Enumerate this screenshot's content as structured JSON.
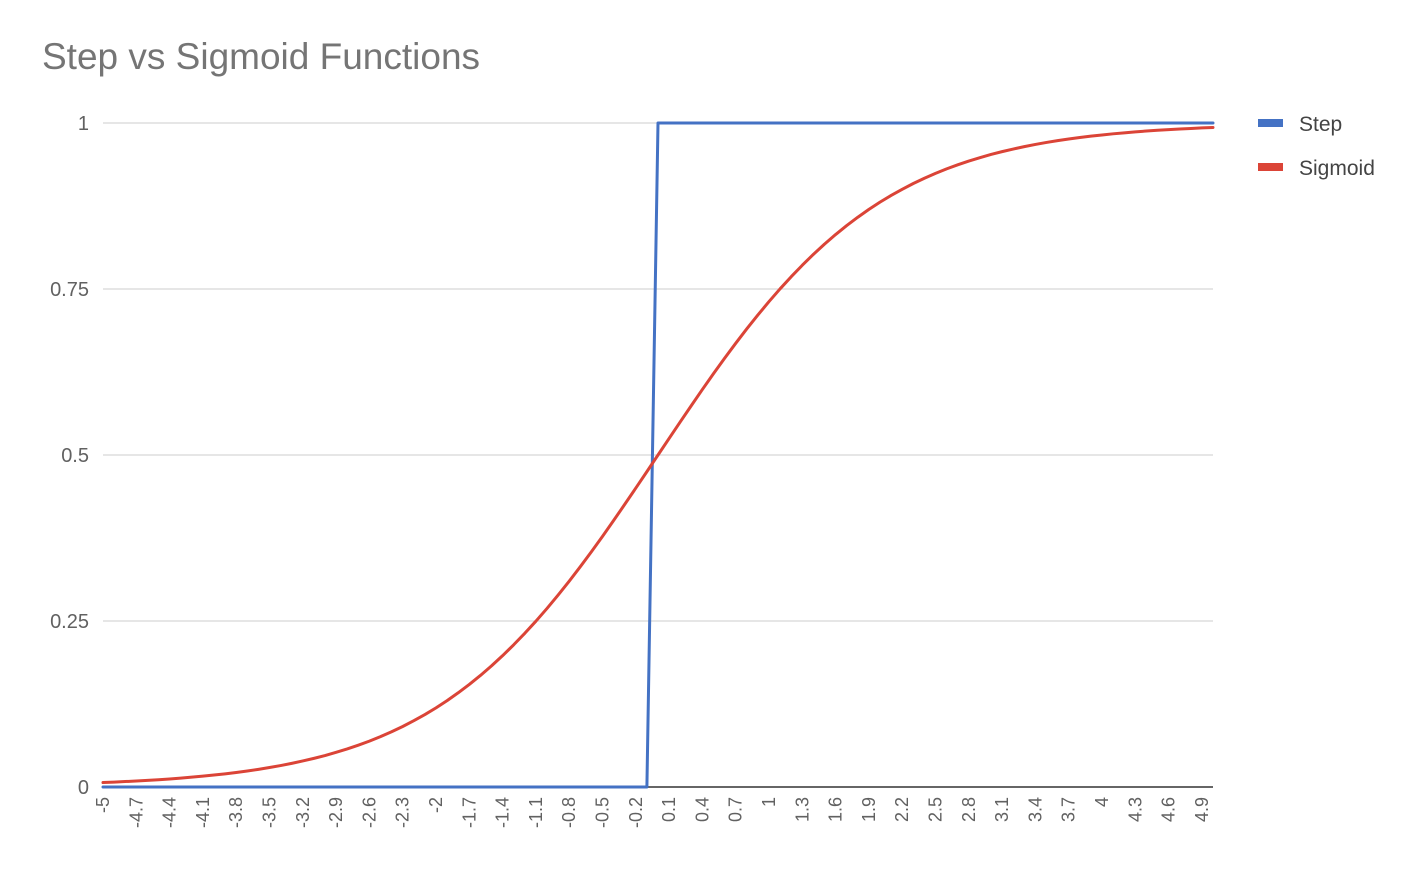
{
  "chart_data": {
    "type": "line",
    "title": "Step vs Sigmoid Functions",
    "xlabel": "",
    "ylabel": "",
    "x_tick_labels": [
      "-5",
      "-4.7",
      "-4.4",
      "-4.1",
      "-3.8",
      "-3.5",
      "-3.2",
      "-2.9",
      "-2.6",
      "-2.3",
      "-2",
      "-1.7",
      "-1.4",
      "-1.1",
      "-0.8",
      "-0.5",
      "-0.2",
      "0.1",
      "0.4",
      "0.7",
      "1",
      "1.3",
      "1.6",
      "1.9",
      "2.2",
      "2.5",
      "2.8",
      "3.1",
      "3.4",
      "3.7",
      "4",
      "4.3",
      "4.6",
      "4.9"
    ],
    "y_ticks": [
      "0",
      "0.25",
      "0.5",
      "0.75",
      "1"
    ],
    "ylim": [
      0,
      1
    ],
    "x": [
      -5,
      -4.9,
      -4.8,
      -4.7,
      -4.6,
      -4.5,
      -4.4,
      -4.3,
      -4.2,
      -4.1,
      -4,
      -3.9,
      -3.8,
      -3.7,
      -3.6,
      -3.5,
      -3.4,
      -3.3,
      -3.2,
      -3.1,
      -3,
      -2.9,
      -2.8,
      -2.7,
      -2.6,
      -2.5,
      -2.4,
      -2.3,
      -2.2,
      -2.1,
      -2,
      -1.9,
      -1.8,
      -1.7,
      -1.6,
      -1.5,
      -1.4,
      -1.3,
      -1.2,
      -1.1,
      -1,
      -0.9,
      -0.8,
      -0.7,
      -0.6,
      -0.5,
      -0.4,
      -0.3,
      -0.2,
      -0.1,
      0,
      0.1,
      0.2,
      0.3,
      0.4,
      0.5,
      0.6,
      0.7,
      0.8,
      0.9,
      1,
      1.1,
      1.2,
      1.3,
      1.4,
      1.5,
      1.6,
      1.7,
      1.8,
      1.9,
      2,
      2.1,
      2.2,
      2.3,
      2.4,
      2.5,
      2.6,
      2.7,
      2.8,
      2.9,
      3,
      3.1,
      3.2,
      3.3,
      3.4,
      3.5,
      3.6,
      3.7,
      3.8,
      3.9,
      4,
      4.1,
      4.2,
      4.3,
      4.4,
      4.5,
      4.6,
      4.7,
      4.8,
      4.9,
      5
    ],
    "series": [
      {
        "name": "Step",
        "color": "#4472c4",
        "values": [
          0,
          0,
          0,
          0,
          0,
          0,
          0,
          0,
          0,
          0,
          0,
          0,
          0,
          0,
          0,
          0,
          0,
          0,
          0,
          0,
          0,
          0,
          0,
          0,
          0,
          0,
          0,
          0,
          0,
          0,
          0,
          0,
          0,
          0,
          0,
          0,
          0,
          0,
          0,
          0,
          0,
          0,
          0,
          0,
          0,
          0,
          0,
          0,
          0,
          0,
          1,
          1,
          1,
          1,
          1,
          1,
          1,
          1,
          1,
          1,
          1,
          1,
          1,
          1,
          1,
          1,
          1,
          1,
          1,
          1,
          1,
          1,
          1,
          1,
          1,
          1,
          1,
          1,
          1,
          1,
          1,
          1,
          1,
          1,
          1,
          1,
          1,
          1,
          1,
          1,
          1,
          1,
          1,
          1,
          1,
          1,
          1,
          1,
          1,
          1,
          1
        ]
      },
      {
        "name": "Sigmoid",
        "color": "#db4437",
        "values": [
          0.0067,
          0.0074,
          0.0082,
          0.009,
          0.01,
          0.011,
          0.0121,
          0.0134,
          0.0148,
          0.0163,
          0.018,
          0.0198,
          0.0219,
          0.0241,
          0.0266,
          0.0293,
          0.0323,
          0.0356,
          0.0392,
          0.0431,
          0.0474,
          0.0522,
          0.0573,
          0.063,
          0.0691,
          0.0759,
          0.0832,
          0.0911,
          0.0998,
          0.1091,
          0.1192,
          0.1301,
          0.1419,
          0.1545,
          0.168,
          0.1824,
          0.1978,
          0.2142,
          0.2315,
          0.2497,
          0.2689,
          0.2891,
          0.31,
          0.3318,
          0.3543,
          0.3775,
          0.4013,
          0.4256,
          0.4502,
          0.475,
          0.5,
          0.525,
          0.5498,
          0.5744,
          0.5987,
          0.6225,
          0.6457,
          0.6682,
          0.69,
          0.7109,
          0.7311,
          0.7503,
          0.7685,
          0.7858,
          0.8022,
          0.8176,
          0.832,
          0.8455,
          0.8581,
          0.8699,
          0.8808,
          0.8909,
          0.9002,
          0.9089,
          0.9168,
          0.9241,
          0.9309,
          0.937,
          0.9427,
          0.9478,
          0.9526,
          0.9569,
          0.9608,
          0.9644,
          0.9677,
          0.9707,
          0.9734,
          0.9759,
          0.9781,
          0.9802,
          0.982,
          0.9837,
          0.9852,
          0.9866,
          0.9879,
          0.989,
          0.99,
          0.991,
          0.9918,
          0.9926,
          0.9933
        ]
      }
    ],
    "legend_position": "right",
    "grid": true,
    "colors": {
      "grid": "#cccccc",
      "baseline": "#333333",
      "title": "#757575",
      "tick": "#616161"
    }
  }
}
